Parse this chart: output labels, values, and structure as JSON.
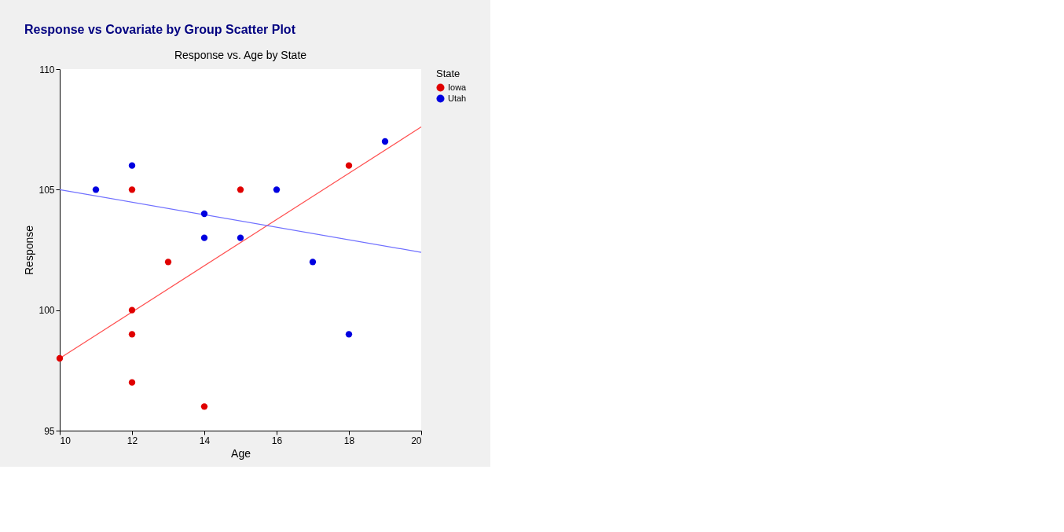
{
  "chart_data": {
    "type": "scatter",
    "title": "Response vs Covariate by Group Scatter Plot",
    "subtitle": "Response vs. Age by State",
    "xlabel": "Age",
    "ylabel": "Response",
    "legend_title": "State",
    "series": [
      {
        "name": "Iowa",
        "color": "#e00000",
        "x": [
          10,
          12,
          12,
          12,
          12,
          13,
          14,
          15,
          18
        ],
        "values": [
          98,
          105,
          100,
          99,
          97,
          102,
          96,
          105,
          106
        ]
      },
      {
        "name": "Utah",
        "color": "#0000e0",
        "x": [
          11,
          12,
          14,
          14,
          15,
          16,
          17,
          18,
          19
        ],
        "values": [
          105,
          106,
          104,
          103,
          103,
          105,
          102,
          99,
          107
        ]
      },
      {
        "type": "line",
        "marker": "none",
        "color": "#ff5050",
        "x": [
          10,
          20
        ],
        "values": [
          98,
          107.6
        ]
      },
      {
        "type": "line",
        "marker": "none",
        "color": "#7070ff",
        "x": [
          10,
          20
        ],
        "values": [
          105,
          102.4
        ]
      }
    ],
    "xlim": [
      10,
      20
    ],
    "xticks": [
      10,
      12,
      14,
      16,
      18,
      20
    ],
    "ylim": [
      95,
      110
    ],
    "yticks": [
      95,
      100,
      105,
      110
    ],
    "grid": false,
    "legend": "right",
    "marker": "circle",
    "line_style": "solid"
  }
}
